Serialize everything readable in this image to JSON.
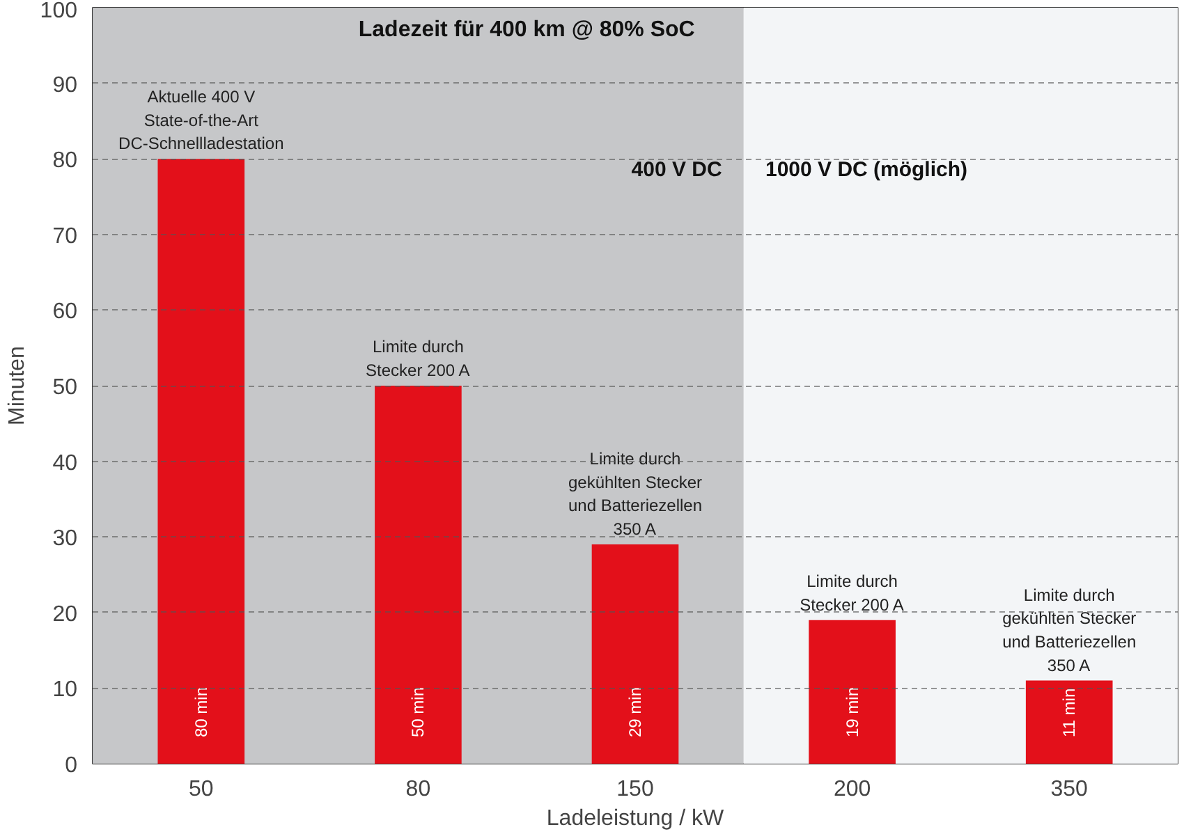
{
  "chart_data": {
    "type": "bar",
    "title": "Ladezeit für 400 km @ 80% SoC",
    "xlabel": "Ladeleistung / kW",
    "ylabel": "Minuten",
    "categories": [
      "50",
      "80",
      "150",
      "200",
      "350"
    ],
    "values": [
      80,
      50,
      29,
      19,
      11
    ],
    "color": "#e3101a",
    "value_labels": [
      "80 min",
      "50 min",
      "29 min",
      "19 min",
      "11 min"
    ],
    "ylim": [
      0,
      100
    ],
    "yticks": [
      0,
      10,
      20,
      30,
      40,
      50,
      60,
      70,
      80,
      90,
      100
    ],
    "grid": "y",
    "bands": [
      {
        "axis": "x",
        "from": "50",
        "to": "150",
        "label": "400 V DC",
        "color": "#c6c7c9"
      },
      {
        "axis": "x",
        "from": "200",
        "to": "350",
        "label": "1000 V DC (möglich)",
        "color": "#f3f5f7"
      }
    ],
    "annotations": [
      {
        "text": "Aktuelle 400 V\nState-of-the-Art\nDC-Schnellladestation",
        "x": "50",
        "y": 80
      },
      {
        "text": "Limite durch\nStecker 200 A",
        "x": "80",
        "y": 50
      },
      {
        "text": "Limite durch\ngekühlten Stecker\nund Batteriezellen\n350 A",
        "x": "150",
        "y": 29
      },
      {
        "text": "Limite durch\nStecker 200 A",
        "x": "200",
        "y": 19
      },
      {
        "text": "Limite durch\ngekühlten Stecker\nund Batteriezellen\n350 A",
        "x": "350",
        "y": 11
      }
    ]
  }
}
